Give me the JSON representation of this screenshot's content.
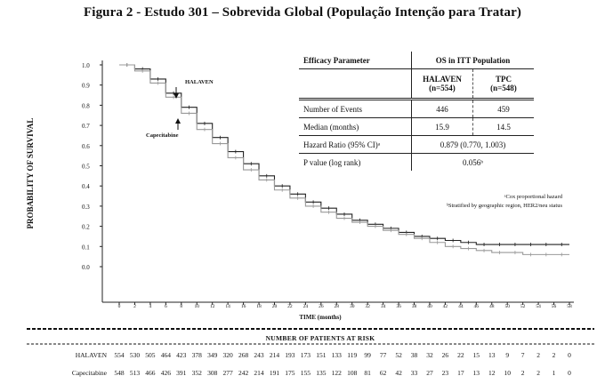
{
  "chart_data": {
    "type": "line",
    "title": "Figura 2 - Estudo 301 – Sobrevida Global (População Intenção para Tratar)",
    "xlabel": "TIME (months)",
    "ylabel": "PROBABILITY OF SURVIVAL",
    "xlim": [
      0,
      58
    ],
    "ylim": [
      0,
      1.0
    ],
    "x_ticks": [
      "0",
      "2",
      "4",
      "6",
      "8",
      "10",
      "12",
      "14",
      "16",
      "18",
      "20",
      "22",
      "24",
      "26",
      "28",
      "30",
      "32",
      "34",
      "36",
      "38",
      "40",
      "42",
      "44",
      "46",
      "48",
      "50",
      "52",
      "54",
      "56",
      "58"
    ],
    "y_ticks": [
      "1.0",
      "0.9",
      "0.8",
      "0.7",
      "0.6",
      "0.5",
      "0.4",
      "0.3",
      "0.2",
      "0.1",
      "0.0"
    ],
    "series": [
      {
        "name": "HALAVEN",
        "color": "#222222",
        "x": [
          0,
          2,
          4,
          6,
          8,
          10,
          12,
          14,
          16,
          18,
          20,
          22,
          24,
          26,
          28,
          30,
          32,
          34,
          36,
          38,
          40,
          42,
          44,
          46,
          48,
          50,
          52,
          54,
          56,
          58
        ],
        "y": [
          1.0,
          0.98,
          0.93,
          0.86,
          0.79,
          0.71,
          0.64,
          0.57,
          0.51,
          0.45,
          0.4,
          0.36,
          0.32,
          0.29,
          0.26,
          0.23,
          0.21,
          0.19,
          0.17,
          0.15,
          0.14,
          0.13,
          0.12,
          0.11,
          0.11,
          0.11,
          0.11,
          0.11,
          0.11,
          0.11
        ]
      },
      {
        "name": "Capecitabine",
        "color": "#999999",
        "x": [
          0,
          2,
          4,
          6,
          8,
          10,
          12,
          14,
          16,
          18,
          20,
          22,
          24,
          26,
          28,
          30,
          32,
          34,
          36,
          38,
          40,
          42,
          44,
          46,
          48,
          50,
          52,
          54,
          56,
          58
        ],
        "y": [
          1.0,
          0.97,
          0.91,
          0.84,
          0.76,
          0.68,
          0.61,
          0.54,
          0.48,
          0.43,
          0.38,
          0.34,
          0.3,
          0.27,
          0.24,
          0.22,
          0.2,
          0.18,
          0.16,
          0.14,
          0.12,
          0.1,
          0.09,
          0.08,
          0.07,
          0.07,
          0.06,
          0.06,
          0.06,
          0.06
        ]
      }
    ],
    "annotations": [
      {
        "text": "HALAVEN",
        "series": "HALAVEN"
      },
      {
        "text": "Capecitabine",
        "series": "Capecitabine"
      }
    ]
  },
  "stats_table": {
    "header": {
      "param": "Efficacy Parameter",
      "group": "OS in ITT Population"
    },
    "subheader": {
      "col1": "HALAVEN",
      "col1_n": "(n=554)",
      "col2": "TPC",
      "col2_n": "(n=548)"
    },
    "rows": [
      {
        "param": "Number of Events",
        "col1": "446",
        "col2": "459"
      },
      {
        "param": "Median (months)",
        "col1": "15.9",
        "col2": "14.5"
      },
      {
        "param": "Hazard Ratio (95% CI)ᵃ",
        "merged": "0.879 (0.770, 1.003)"
      },
      {
        "param": "P value (log rank)",
        "merged": "0.056ᵇ"
      }
    ],
    "footnotes": [
      "ᵃCox proportional hazard",
      "ᵇStratified by geographic region, HER2/neu status"
    ]
  },
  "risk_table": {
    "title": "NUMBER OF PATIENTS AT RISK",
    "rows": [
      {
        "label": "HALAVEN",
        "values": [
          "554",
          "530",
          "505",
          "464",
          "423",
          "378",
          "349",
          "320",
          "268",
          "243",
          "214",
          "193",
          "173",
          "151",
          "133",
          "119",
          "99",
          "77",
          "52",
          "38",
          "32",
          "26",
          "22",
          "15",
          "13",
          "9",
          "7",
          "2",
          "2",
          "0"
        ]
      },
      {
        "label": "Capecitabine",
        "values": [
          "548",
          "513",
          "466",
          "426",
          "391",
          "352",
          "308",
          "277",
          "242",
          "214",
          "191",
          "175",
          "155",
          "135",
          "122",
          "108",
          "81",
          "62",
          "42",
          "33",
          "27",
          "23",
          "17",
          "13",
          "12",
          "10",
          "2",
          "2",
          "1",
          "0"
        ]
      }
    ]
  }
}
